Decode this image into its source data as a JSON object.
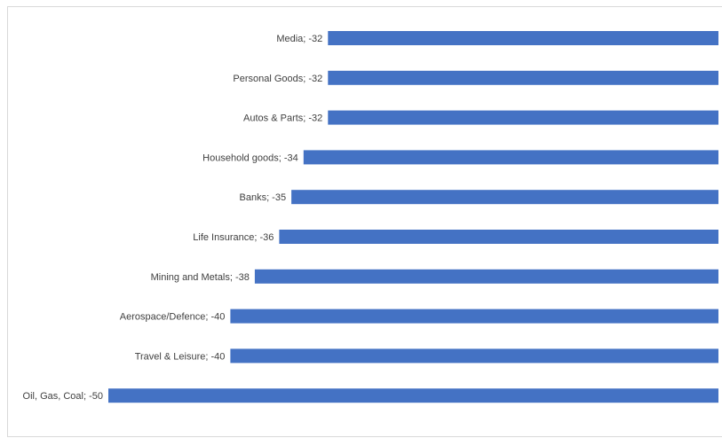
{
  "chart_data": {
    "type": "bar",
    "orientation": "horizontal",
    "categories": [
      "Media",
      "Personal Goods",
      "Autos & Parts",
      "Household goods",
      "Banks",
      "Life Insurance",
      "Mining and Metals",
      "Aerospace/Defence",
      "Travel & Leisure",
      "Oil, Gas, Coal"
    ],
    "values": [
      -32,
      -32,
      -32,
      -34,
      -35,
      -36,
      -38,
      -40,
      -40,
      -50
    ],
    "data_labels": [
      "Media; -32",
      "Personal Goods; -32",
      "Autos & Parts; -32",
      "Household goods; -34",
      "Banks; -35",
      "Life Insurance; -36",
      "Mining and Metals; -38",
      "Aerospace/Defence; -40",
      "Travel & Leisure; -40",
      "Oil, Gas, Coal; -50"
    ],
    "bar_color": "#4472C4",
    "label_color": "#404040",
    "title": "",
    "xlabel": "",
    "ylabel": "",
    "xlim": [
      -50,
      0
    ],
    "grid": false,
    "legend": "none"
  }
}
